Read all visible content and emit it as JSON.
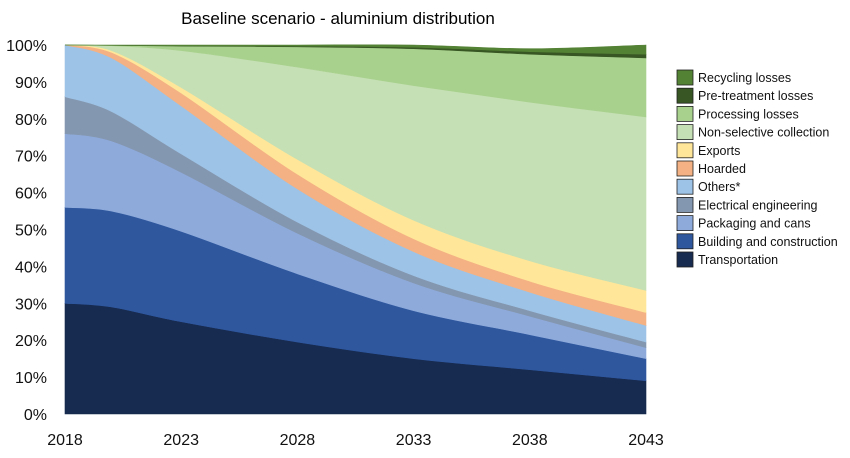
{
  "chart_data": {
    "type": "area",
    "stacked": true,
    "normalized": true,
    "title": "Baseline scenario - aluminium distribution",
    "x_ticks": [
      "2018",
      "2023",
      "2028",
      "2033",
      "2038",
      "2043"
    ],
    "y_ticks": [
      "0%",
      "10%",
      "20%",
      "30%",
      "40%",
      "50%",
      "60%",
      "70%",
      "80%",
      "90%",
      "100%"
    ],
    "ylim": [
      0,
      100
    ],
    "xlim": [
      2018,
      2043
    ],
    "x": [
      2018,
      2020,
      2023,
      2028,
      2033,
      2038,
      2043
    ],
    "grid": false,
    "legend_position": "right",
    "series": [
      {
        "name": "Transportation",
        "color": "#172a4f",
        "values": [
          30,
          29,
          25,
          19.5,
          15,
          12,
          9
        ]
      },
      {
        "name": "Building and construction",
        "color": "#2e579e",
        "values": [
          26,
          26,
          24.5,
          18.5,
          13,
          9.5,
          6
        ]
      },
      {
        "name": "Packaging and cans",
        "color": "#8eaadb",
        "values": [
          20,
          19,
          16,
          11,
          7.5,
          5,
          3
        ]
      },
      {
        "name": "Electrical engineering",
        "color": "#8497b0",
        "values": [
          10,
          8,
          5,
          3,
          2,
          1.5,
          1.5
        ]
      },
      {
        "name": "Others*",
        "color": "#9dc3e6",
        "values": [
          14,
          14.5,
          13,
          9,
          6.5,
          5,
          4.5
        ]
      },
      {
        "name": "Hoarded",
        "color": "#f4b183",
        "values": [
          0,
          1.5,
          3.5,
          4,
          3.5,
          3,
          3.5
        ]
      },
      {
        "name": "Exports",
        "color": "#ffe699",
        "values": [
          0,
          0.5,
          1.5,
          4,
          5,
          5.5,
          6
        ]
      },
      {
        "name": "Non-selective collection",
        "color": "#c5e0b4",
        "values": [
          0,
          1.3,
          10,
          25,
          36.5,
          43,
          47
        ]
      },
      {
        "name": "Processing losses",
        "color": "#a9d18e",
        "values": [
          0,
          0.1,
          1.2,
          5.5,
          10,
          13,
          16
        ]
      },
      {
        "name": "Pre-treatment losses",
        "color": "#375623",
        "values": [
          0,
          0,
          0.1,
          0.2,
          0.4,
          0.7,
          1
        ]
      },
      {
        "name": "Recycling losses",
        "color": "#548235",
        "values": [
          0,
          0.1,
          0.2,
          0.3,
          0.6,
          0.8,
          2.5
        ]
      }
    ]
  }
}
